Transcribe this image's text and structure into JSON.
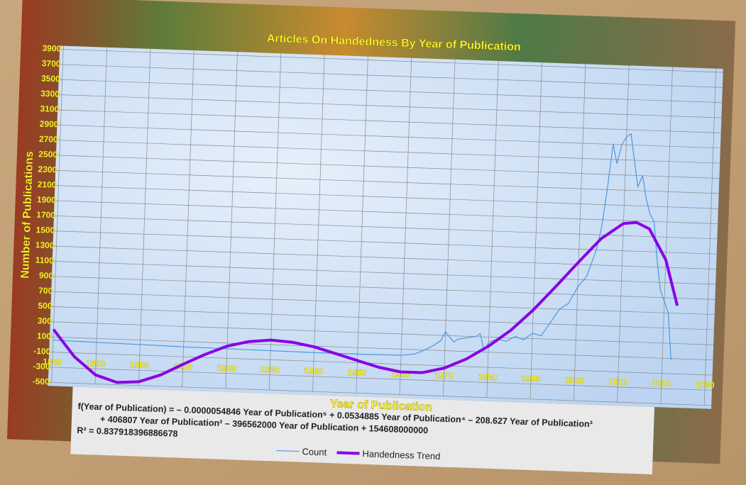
{
  "chart_data": {
    "type": "line",
    "title": "Articles On Handedness By Year of Publication",
    "x_label": "Year of Publication",
    "y_label": "Number of Publications",
    "xlim": [
      1880,
      2030
    ],
    "xticks": [
      1880,
      1890,
      1900,
      1910,
      1920,
      1930,
      1940,
      1950,
      1960,
      1970,
      1980,
      1990,
      2000,
      2010,
      2020,
      2030
    ],
    "ylim": [
      -500,
      3900
    ],
    "yticks": [
      -500,
      -300,
      -100,
      100,
      300,
      500,
      700,
      900,
      1100,
      1300,
      1500,
      1700,
      1900,
      2100,
      2300,
      2500,
      2700,
      2900,
      3100,
      3300,
      3500,
      3700,
      3900
    ],
    "grid": true,
    "series": [
      {
        "name": "Count",
        "color": "#4a98e4",
        "width": 1.2,
        "x": [
          1880,
          1890,
          1900,
          1910,
          1920,
          1930,
          1940,
          1950,
          1960,
          1963,
          1965,
          1967,
          1969,
          1970,
          1971,
          1972,
          1973,
          1975,
          1977,
          1978,
          1979,
          1980,
          1982,
          1984,
          1986,
          1988,
          1990,
          1992,
          1994,
          1996,
          1998,
          2000,
          2002,
          2004,
          2005,
          2006,
          2007,
          2008,
          2009,
          2010,
          2011,
          2012,
          2013,
          2014,
          2015,
          2016,
          2017,
          2018,
          2019,
          2020,
          2021,
          2022
        ],
        "values": [
          60,
          50,
          40,
          30,
          25,
          20,
          15,
          15,
          20,
          40,
          90,
          150,
          230,
          350,
          280,
          220,
          260,
          280,
          300,
          340,
          120,
          230,
          280,
          250,
          320,
          280,
          370,
          340,
          520,
          700,
          780,
          1000,
          1150,
          1500,
          1800,
          2300,
          2900,
          2650,
          2900,
          3000,
          3050,
          2700,
          2350,
          2500,
          2200,
          2000,
          1900,
          1400,
          1000,
          850,
          700,
          80
        ]
      },
      {
        "name": "Handedness Trend",
        "color": "#8a00e6",
        "width": 4,
        "x": [
          1880,
          1885,
          1890,
          1895,
          1900,
          1905,
          1910,
          1915,
          1920,
          1925,
          1930,
          1935,
          1940,
          1945,
          1950,
          1955,
          1960,
          1965,
          1970,
          1975,
          1980,
          1985,
          1990,
          1995,
          2000,
          2005,
          2010,
          2013,
          2016,
          2020,
          2023
        ],
        "values": [
          200,
          -150,
          -380,
          -470,
          -450,
          -350,
          -200,
          -60,
          60,
          130,
          160,
          140,
          90,
          10,
          -70,
          -150,
          -200,
          -200,
          -130,
          0,
          180,
          400,
          680,
          1000,
          1330,
          1650,
          1860,
          1880,
          1800,
          1400,
          800
        ]
      }
    ],
    "equation": [
      "f(Year of Publication) = – 0.0000054846 Year of Publication⁵ + 0.0534885 Year of Publication⁴ – 208.627 Year of Publication³",
      "+ 406807 Year of Publication² – 396562000 Year of Publication + 154608000000",
      "R² = 0.837918396886678"
    ]
  }
}
